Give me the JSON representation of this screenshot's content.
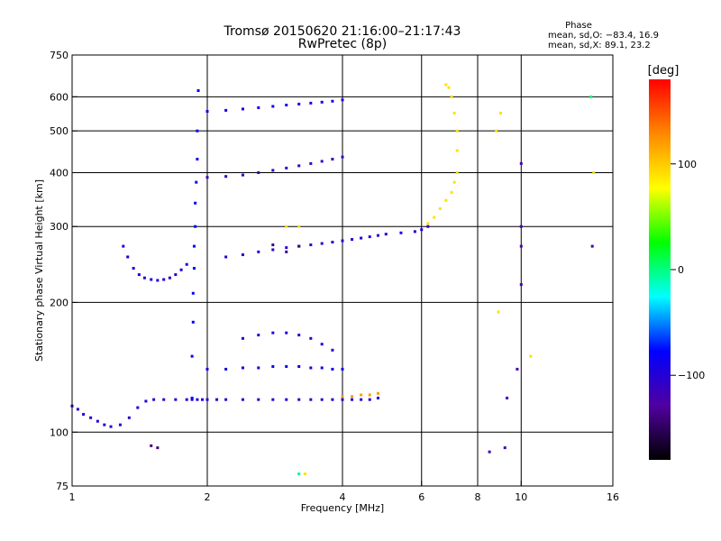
{
  "chart_data": {
    "type": "scatter",
    "title": "Tromsø 20150620 21:16:00–21:17:43",
    "subtitle": "RwPretec (8p)",
    "xlabel": "Frequency [MHz]",
    "ylabel": "Stationary phase Virtual Height [km]",
    "x_scale": "log",
    "y_scale": "log",
    "xlim": [
      1,
      16
    ],
    "ylim": [
      75,
      750
    ],
    "x_ticks": [
      1,
      2,
      4,
      6,
      8,
      10,
      16
    ],
    "y_ticks": [
      75,
      100,
      200,
      300,
      400,
      500,
      600,
      750
    ],
    "x_gridlines": [
      2,
      4,
      6,
      8,
      10
    ],
    "y_gridlines": [
      100,
      200,
      300,
      400,
      500,
      600
    ],
    "grid": true,
    "stats": {
      "heading": "Phase",
      "line_o": "mean, sd,O: −83.4, 16.9",
      "line_x": "mean, sd,X:  89.1, 23.2"
    },
    "colorbar": {
      "label": "[deg]",
      "range": [
        -180,
        180
      ],
      "ticks": [
        100,
        0,
        -100
      ],
      "tick_labels": [
        "100",
        "0",
        "−100"
      ],
      "colors": [
        "#ff0000",
        "#ff8800",
        "#ffff00",
        "#00ff00",
        "#00ffff",
        "#0000ff",
        "#5000a0",
        "#000000"
      ]
    },
    "series": [
      {
        "phase": -100,
        "x": [
          1.0,
          1.03,
          1.06,
          1.1,
          1.14,
          1.18,
          1.22,
          1.28,
          1.34,
          1.4,
          1.46,
          1.52,
          1.6,
          1.7,
          1.8,
          1.85,
          1.9,
          1.95,
          2.0,
          2.1,
          2.2,
          2.4,
          2.6,
          2.8,
          3.0,
          3.2,
          3.4,
          3.6,
          3.8,
          4.0,
          4.2,
          4.4,
          4.6,
          4.8
        ],
        "y": [
          115,
          113,
          110,
          108,
          106,
          104,
          103,
          104,
          108,
          114,
          118,
          119,
          119,
          119,
          119,
          119,
          119,
          119,
          119,
          119,
          119,
          119,
          119,
          119,
          119,
          119,
          119,
          119,
          119,
          119,
          119,
          119,
          119,
          120
        ]
      },
      {
        "phase": -100,
        "x": [
          2.2,
          2.4,
          2.6,
          2.8,
          3.0,
          3.2,
          3.4,
          3.6,
          3.8,
          4.0,
          4.2,
          4.4,
          4.6,
          4.8,
          5.0,
          5.4,
          5.8,
          6.0,
          6.2
        ],
        "y": [
          255,
          258,
          262,
          265,
          268,
          270,
          272,
          274,
          276,
          278,
          280,
          282,
          284,
          286,
          288,
          290,
          292,
          295,
          300
        ]
      },
      {
        "phase": 90,
        "x": [
          6.2,
          6.4,
          6.6,
          6.8,
          7.0,
          7.1,
          7.2,
          7.2,
          7.2,
          7.1,
          7.0,
          6.9,
          6.8
        ],
        "y": [
          305,
          315,
          330,
          345,
          360,
          380,
          400,
          450,
          500,
          550,
          600,
          630,
          640
        ]
      },
      {
        "phase": -110,
        "x": [
          2.0,
          2.2,
          2.4,
          2.6,
          2.8,
          3.0,
          3.2,
          3.4,
          3.6,
          3.8,
          4.0
        ],
        "y": [
          390,
          392,
          395,
          400,
          405,
          410,
          415,
          420,
          425,
          430,
          435
        ]
      },
      {
        "phase": -90,
        "x": [
          2.0,
          2.2,
          2.4,
          2.6,
          2.8,
          3.0,
          3.2,
          3.4,
          3.6,
          3.8,
          4.0
        ],
        "y": [
          555,
          558,
          562,
          566,
          570,
          574,
          577,
          580,
          583,
          586,
          590
        ]
      },
      {
        "phase": -80,
        "x": [
          1.85,
          1.85,
          1.86,
          1.86,
          1.87,
          1.87,
          1.88,
          1.88,
          1.89,
          1.9,
          1.9,
          1.91
        ],
        "y": [
          120,
          150,
          180,
          210,
          240,
          270,
          300,
          340,
          380,
          430,
          500,
          620
        ]
      },
      {
        "phase": -95,
        "x": [
          1.3,
          1.33,
          1.37,
          1.41,
          1.45,
          1.5,
          1.55,
          1.6,
          1.65,
          1.7,
          1.75,
          1.8
        ],
        "y": [
          270,
          255,
          240,
          232,
          228,
          226,
          225,
          226,
          228,
          232,
          238,
          245
        ]
      },
      {
        "phase": -100,
        "x": [
          2.4,
          2.6,
          2.8,
          3.0,
          3.2,
          3.4,
          3.6,
          3.8
        ],
        "y": [
          165,
          168,
          170,
          170,
          168,
          165,
          160,
          155
        ]
      },
      {
        "phase": -90,
        "x": [
          2.0,
          2.2,
          2.4,
          2.6,
          2.8,
          3.0,
          3.2,
          3.4,
          3.6,
          3.8,
          4.0
        ],
        "y": [
          140,
          140,
          141,
          141,
          142,
          142,
          142,
          141,
          141,
          140,
          140
        ]
      },
      {
        "phase": 120,
        "x": [
          4.0,
          4.2,
          4.4,
          4.6,
          4.8
        ],
        "y": [
          121,
          121,
          122,
          122,
          123
        ]
      },
      {
        "phase": -140,
        "x": [
          1.5,
          1.55,
          2.8,
          3.0,
          3.2
        ],
        "y": [
          93,
          92,
          272,
          262,
          270
        ]
      },
      {
        "phase": -120,
        "x": [
          8.5,
          9.2,
          9.3,
          9.8,
          10.0,
          10.0,
          10.0,
          10.0,
          14.4
        ],
        "y": [
          90,
          92,
          120,
          140,
          220,
          270,
          300,
          420,
          270
        ]
      },
      {
        "phase": 90,
        "x": [
          3.0,
          3.2,
          3.3,
          8.8,
          8.9,
          9.0,
          10.5,
          14.5
        ],
        "y": [
          300,
          300,
          80,
          500,
          190,
          550,
          150,
          400
        ]
      },
      {
        "phase": 0,
        "x": [
          3.2,
          14.3
        ],
        "y": [
          80,
          600
        ]
      }
    ]
  }
}
